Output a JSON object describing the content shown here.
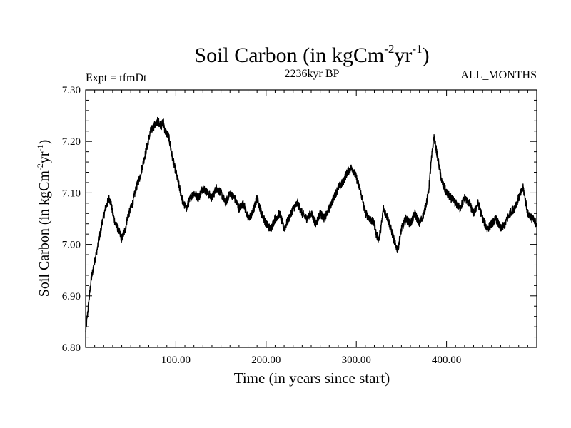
{
  "chart_data": {
    "type": "line",
    "title": {
      "main": "Soil Carbon (in kgCm",
      "exp1": "-2",
      "mid": "yr",
      "exp2": "-1",
      "end": ")"
    },
    "subtitle_left": "Expt = tfmDt",
    "subtitle_center": "2236kyr BP",
    "subtitle_right": "ALL_MONTHS",
    "xlabel": "Time (in years since start)",
    "ylabel": {
      "main": "Soil Carbon (in kgCm",
      "exp1": "-2",
      "mid": "yr",
      "exp2": "-1",
      "end": ")"
    },
    "xlim": [
      0,
      500
    ],
    "ylim": [
      6.8,
      7.3
    ],
    "x_ticks": [
      {
        "value": 100,
        "label": "100.00"
      },
      {
        "value": 200,
        "label": "200.00"
      },
      {
        "value": 300,
        "label": "300.00"
      },
      {
        "value": 400,
        "label": "400.00"
      }
    ],
    "y_ticks": [
      {
        "value": 6.8,
        "label": "6.80"
      },
      {
        "value": 6.9,
        "label": "6.90"
      },
      {
        "value": 7.0,
        "label": "7.00"
      },
      {
        "value": 7.1,
        "label": "7.10"
      },
      {
        "value": 7.2,
        "label": "7.20"
      },
      {
        "value": 7.3,
        "label": "7.30"
      }
    ],
    "series": [
      {
        "name": "Soil Carbon",
        "color": "#000000",
        "noise_amplitude": 0.008,
        "x": [
          0,
          3,
          6,
          10,
          14,
          18,
          22,
          26,
          28,
          30,
          33,
          36,
          40,
          44,
          46,
          48,
          52,
          56,
          60,
          64,
          68,
          72,
          76,
          80,
          84,
          86,
          88,
          92,
          96,
          100,
          104,
          108,
          112,
          116,
          120,
          125,
          130,
          135,
          140,
          145,
          150,
          155,
          160,
          165,
          170,
          175,
          180,
          185,
          190,
          195,
          200,
          205,
          210,
          215,
          220,
          225,
          230,
          235,
          240,
          245,
          250,
          255,
          260,
          265,
          270,
          275,
          280,
          285,
          290,
          295,
          300,
          305,
          310,
          315,
          320,
          322,
          325,
          328,
          330,
          335,
          340,
          343,
          346,
          350,
          355,
          360,
          365,
          370,
          375,
          380,
          383,
          386,
          390,
          395,
          400,
          405,
          410,
          415,
          420,
          425,
          430,
          435,
          440,
          445,
          450,
          455,
          460,
          465,
          470,
          475,
          480,
          485,
          490,
          495,
          500
        ],
        "y": [
          6.83,
          6.88,
          6.93,
          6.97,
          7.0,
          7.04,
          7.07,
          7.09,
          7.08,
          7.06,
          7.04,
          7.03,
          7.01,
          7.03,
          7.05,
          7.06,
          7.08,
          7.11,
          7.13,
          7.16,
          7.19,
          7.22,
          7.23,
          7.24,
          7.23,
          7.24,
          7.22,
          7.21,
          7.17,
          7.14,
          7.11,
          7.08,
          7.07,
          7.09,
          7.1,
          7.09,
          7.11,
          7.1,
          7.09,
          7.11,
          7.1,
          7.08,
          7.1,
          7.09,
          7.07,
          7.08,
          7.05,
          7.06,
          7.09,
          7.06,
          7.04,
          7.03,
          7.05,
          7.06,
          7.03,
          7.05,
          7.07,
          7.08,
          7.06,
          7.05,
          7.06,
          7.04,
          7.06,
          7.05,
          7.07,
          7.09,
          7.11,
          7.12,
          7.14,
          7.15,
          7.13,
          7.1,
          7.06,
          7.05,
          7.04,
          7.02,
          7.01,
          7.04,
          7.07,
          7.05,
          7.02,
          7.0,
          6.99,
          7.03,
          7.05,
          7.04,
          7.06,
          7.04,
          7.06,
          7.1,
          7.16,
          7.21,
          7.17,
          7.12,
          7.1,
          7.09,
          7.08,
          7.07,
          7.09,
          7.08,
          7.06,
          7.08,
          7.05,
          7.03,
          7.04,
          7.05,
          7.03,
          7.04,
          7.06,
          7.07,
          7.09,
          7.11,
          7.06,
          7.05,
          7.04
        ]
      }
    ]
  }
}
